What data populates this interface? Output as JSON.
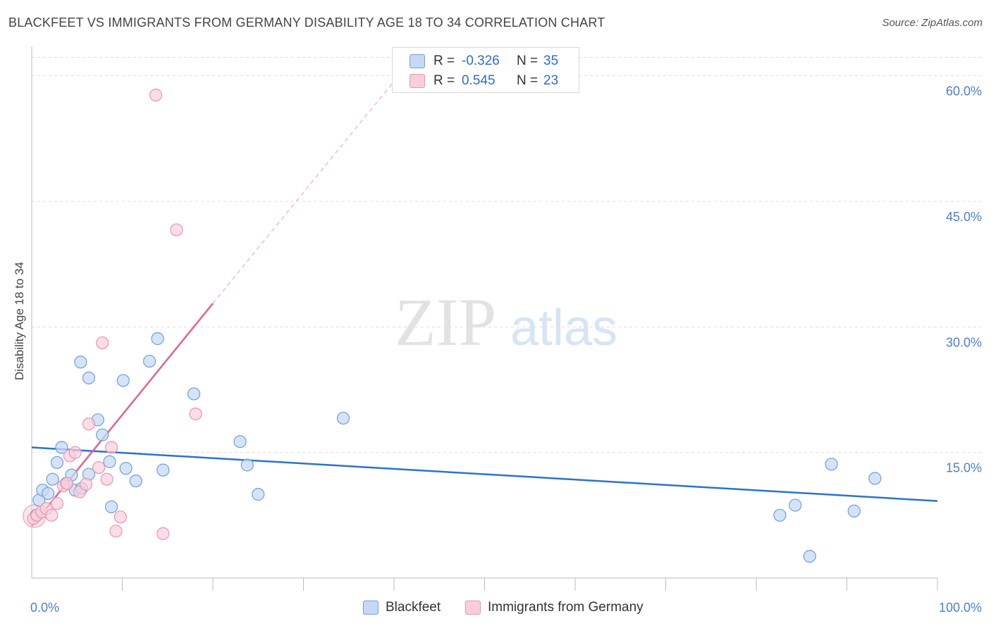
{
  "header": {
    "title": "BLACKFEET VS IMMIGRANTS FROM GERMANY DISABILITY AGE 18 TO 34 CORRELATION CHART",
    "source": "Source: ZipAtlas.com"
  },
  "watermark": {
    "zip": "ZIP",
    "atlas": "atlas"
  },
  "colors": {
    "blue_fill": "#c5d9f4",
    "blue_stroke": "#6f9fdc",
    "blue_line": "#2b72d0",
    "pink_fill": "#f8cedb",
    "pink_stroke": "#e895b0",
    "pink_line": "#e0648e",
    "axis_label": "#4a7fd0",
    "grid": "#dddddd"
  },
  "legend": {
    "rows": [
      {
        "r_label": "R =",
        "r_value": "-0.326",
        "n_label": "N =",
        "n_value": "35"
      },
      {
        "r_label": "R =",
        "r_value": "0.545",
        "n_label": "N =",
        "n_value": "23"
      }
    ]
  },
  "bottom_legend": {
    "series1": "Blackfeet",
    "series2": "Immigrants from Germany"
  },
  "chart_data": {
    "type": "scatter",
    "title": "BLACKFEET VS IMMIGRANTS FROM GERMANY DISABILITY AGE 18 TO 34 CORRELATION CHART",
    "xlabel": "",
    "ylabel": "Disability Age 18 to 34",
    "xlim": [
      0,
      100
    ],
    "ylim": [
      0,
      63
    ],
    "x_tick_labels": [
      "0.0%",
      "100.0%"
    ],
    "y_ticks": [
      15,
      30,
      45,
      60
    ],
    "y_tick_labels": [
      "15.0%",
      "30.0%",
      "45.0%",
      "60.0%"
    ],
    "grid": true,
    "series": [
      {
        "name": "Blackfeet",
        "r": -0.326,
        "n": 35,
        "points": [
          [
            0.5,
            7.5
          ],
          [
            0.8,
            9.3
          ],
          [
            1.2,
            10.5
          ],
          [
            1.8,
            10.1
          ],
          [
            2.3,
            11.8
          ],
          [
            2.8,
            13.8
          ],
          [
            3.3,
            15.6
          ],
          [
            3.8,
            11.3
          ],
          [
            4.4,
            12.3
          ],
          [
            4.8,
            10.5
          ],
          [
            5.5,
            10.7
          ],
          [
            6.3,
            12.4
          ],
          [
            5.4,
            25.8
          ],
          [
            6.3,
            23.9
          ],
          [
            7.3,
            18.9
          ],
          [
            7.8,
            17.1
          ],
          [
            8.6,
            13.9
          ],
          [
            8.8,
            8.5
          ],
          [
            10.1,
            23.6
          ],
          [
            10.4,
            13.1
          ],
          [
            11.5,
            11.6
          ],
          [
            13.0,
            25.9
          ],
          [
            13.9,
            28.6
          ],
          [
            14.5,
            12.9
          ],
          [
            17.9,
            22.0
          ],
          [
            23.0,
            16.3
          ],
          [
            23.8,
            13.5
          ],
          [
            25.0,
            10.0
          ],
          [
            34.4,
            19.1
          ],
          [
            82.6,
            7.5
          ],
          [
            84.3,
            8.7
          ],
          [
            85.9,
            2.6
          ],
          [
            88.3,
            13.6
          ],
          [
            90.8,
            8.0
          ],
          [
            93.1,
            11.9
          ]
        ],
        "trend": {
          "x": [
            0,
            100
          ],
          "y": [
            15.6,
            9.2
          ]
        }
      },
      {
        "name": "Immigrants from Germany",
        "r": 0.545,
        "n": 23,
        "points": [
          [
            0.2,
            7.1
          ],
          [
            0.6,
            7.5
          ],
          [
            1.1,
            7.9
          ],
          [
            1.6,
            8.3
          ],
          [
            2.2,
            7.5
          ],
          [
            2.8,
            8.9
          ],
          [
            3.5,
            11.0
          ],
          [
            4.2,
            14.6
          ],
          [
            4.8,
            15.0
          ],
          [
            5.3,
            10.3
          ],
          [
            6.0,
            11.2
          ],
          [
            6.3,
            18.4
          ],
          [
            7.4,
            13.2
          ],
          [
            7.8,
            28.1
          ],
          [
            8.3,
            11.8
          ],
          [
            8.8,
            15.6
          ],
          [
            9.3,
            5.6
          ],
          [
            9.8,
            7.3
          ],
          [
            13.7,
            57.7
          ],
          [
            14.5,
            5.3
          ],
          [
            16.0,
            41.6
          ],
          [
            18.1,
            19.6
          ],
          [
            3.9,
            11.3
          ]
        ],
        "trend_solid": {
          "x": [
            0,
            20.0
          ],
          "y": [
            6.2,
            32.8
          ]
        },
        "trend_dashed": {
          "x": [
            20.0,
            40.2
          ],
          "y": [
            32.8,
            59.6
          ]
        }
      }
    ]
  }
}
